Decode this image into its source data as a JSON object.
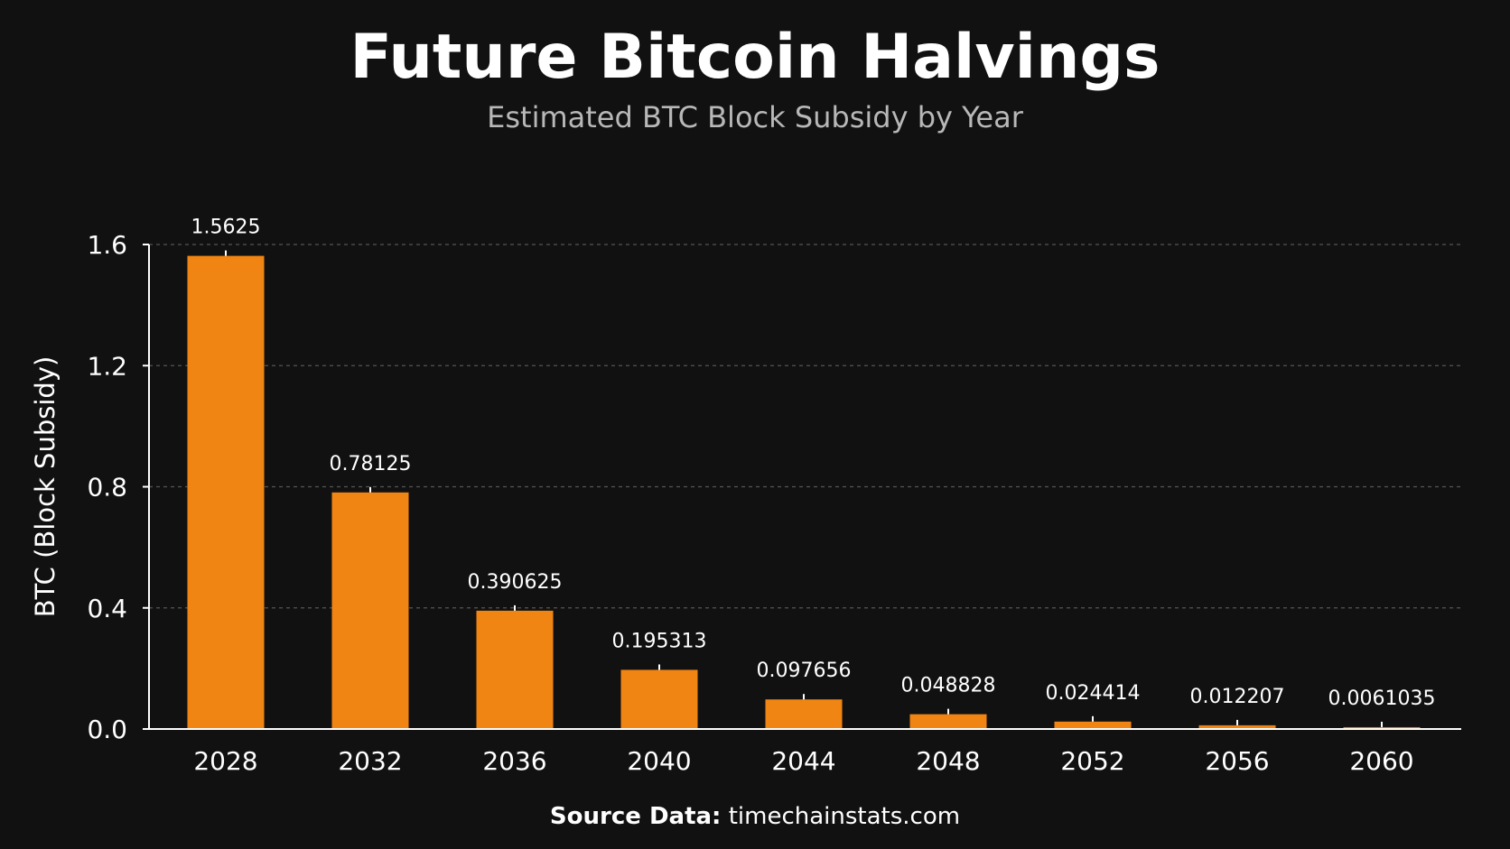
{
  "header": {
    "title": "Future Bitcoin Halvings",
    "subtitle": "Estimated BTC Block Subsidy by Year"
  },
  "footer": {
    "source_label": "Source Data:",
    "source_value": "timechainstats.com"
  },
  "colors": {
    "background": "#111111",
    "bar": "#f18513",
    "grid": "#555555",
    "axis": "#ffffff",
    "text": "#ffffff",
    "subtitle": "#b8b8b8"
  },
  "chart_data": {
    "type": "bar",
    "title": "Future Bitcoin Halvings",
    "subtitle": "Estimated BTC Block Subsidy by Year",
    "xlabel": "",
    "ylabel": "BTC (Block Subsidy)",
    "categories": [
      "2028",
      "2032",
      "2036",
      "2040",
      "2044",
      "2048",
      "2052",
      "2056",
      "2060"
    ],
    "values": [
      1.5625,
      0.78125,
      0.390625,
      0.195313,
      0.097656,
      0.048828,
      0.024414,
      0.012207,
      0.0061035
    ],
    "value_labels": [
      "1.5625",
      "0.78125",
      "0.390625",
      "0.195313",
      "0.097656",
      "0.048828",
      "0.024414",
      "0.012207",
      "0.0061035"
    ],
    "ylim": [
      0,
      1.6
    ],
    "yticks": [
      0.0,
      0.4,
      0.8,
      1.2,
      1.6
    ],
    "ytick_labels": [
      "0.0",
      "0.4",
      "0.8",
      "1.2",
      "1.6"
    ],
    "grid": true,
    "grid_style": "dashed-horizontal",
    "legend": "none"
  }
}
